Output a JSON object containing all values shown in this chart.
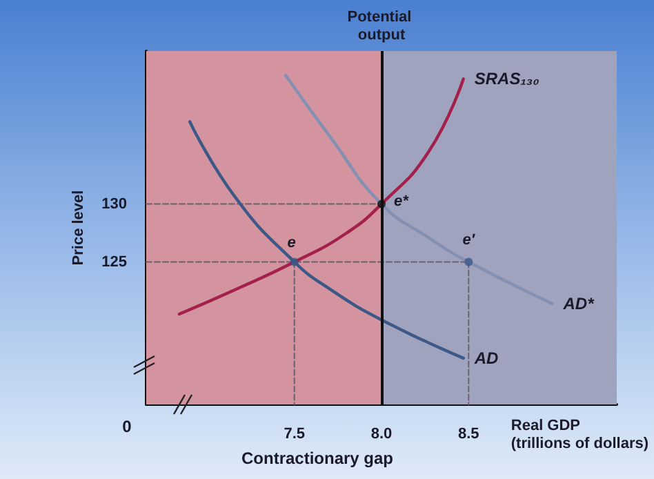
{
  "chart_data": {
    "type": "line",
    "xlabel": "Real GDP\n(trillions of dollars)",
    "ylabel": "Price level",
    "xlim": [
      6.65,
      9.35
    ],
    "ylim": [
      112.7,
      143.2
    ],
    "xticks": [
      7.5,
      {
        "value": 8,
        "label": "8.0"
      },
      8.5
    ],
    "yticks": [
      125,
      130
    ],
    "bands": [
      {
        "axis": "x",
        "from": 6.65,
        "to": 8,
        "color": "#d3949f"
      },
      {
        "axis": "x",
        "from": 8,
        "to": 9.35,
        "color": "#a0a3be"
      }
    ],
    "ref_lines": [
      {
        "axis": "x",
        "value": 8,
        "label": "Potential output",
        "color": "#111111",
        "line_style": "solid"
      }
    ],
    "series": [
      {
        "x": [
          6.65,
          8.0
        ],
        "values": [
          130,
          130
        ],
        "color": "#6a6070",
        "line_style": "dashed",
        "marker": "none"
      },
      {
        "x": [
          6.65,
          8.5
        ],
        "values": [
          125,
          125
        ],
        "color": "#6a6070",
        "line_style": "dashed",
        "marker": "none"
      },
      {
        "x": [
          7.5,
          7.5
        ],
        "values": [
          125,
          112.7
        ],
        "color": "#6a6070",
        "line_style": "dashed",
        "marker": "none"
      },
      {
        "x": [
          8.5,
          8.5
        ],
        "values": [
          125,
          112.7
        ],
        "color": "#6a6070",
        "line_style": "dashed",
        "marker": "none"
      },
      {
        "name": "SRAS₁₃₀",
        "color": "#a3204c",
        "line_style": "solid",
        "marker": "none",
        "x": [
          6.84,
          7.16,
          7.5,
          7.79,
          8.0,
          8.27,
          8.47
        ],
        "values": [
          120.5,
          122.6,
          125,
          127.4,
          130,
          134.5,
          140.8
        ]
      },
      {
        "name": "AD",
        "color": "#3b5886",
        "line_style": "solid",
        "marker": "none",
        "x": [
          6.9,
          7.16,
          7.5,
          7.71,
          8.0,
          8.47
        ],
        "values": [
          137.1,
          130.6,
          125,
          122.6,
          120,
          116.7
        ]
      },
      {
        "name": "AD*",
        "color": "#8390b2",
        "line_style": "solid",
        "marker": "none",
        "x": [
          7.45,
          7.71,
          8.0,
          8.27,
          8.5,
          8.98
        ],
        "values": [
          141.1,
          135.7,
          130,
          127.1,
          125,
          121.4
        ]
      },
      {
        "type": "scatter",
        "marker": "circle",
        "x": [
          7.5,
          8.0,
          8.5
        ],
        "values": [
          125,
          130,
          125
        ],
        "colors": [
          "#3b5886",
          "#111111",
          "#3b5886"
        ]
      }
    ],
    "annotations": [
      {
        "text": "e",
        "x": 7.5,
        "y": 125
      },
      {
        "text": "e*",
        "x": 8.0,
        "y": 130
      },
      {
        "text": "e′",
        "x": 8.5,
        "y": 125
      },
      "0",
      "Contractionary gap"
    ]
  }
}
